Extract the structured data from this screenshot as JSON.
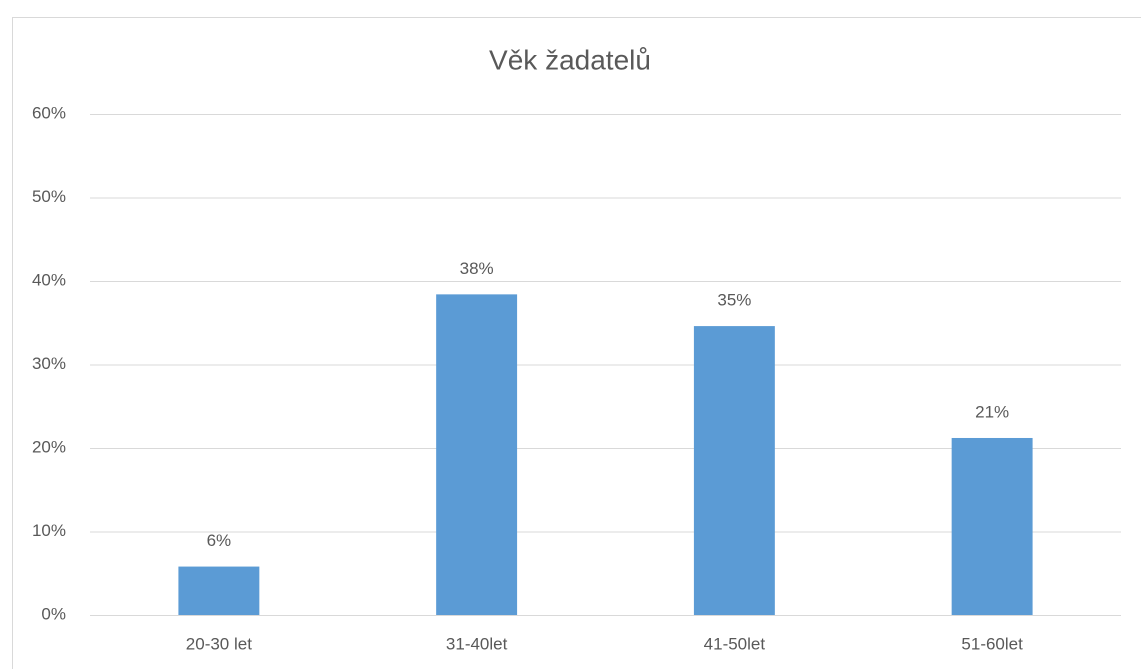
{
  "chart_data": {
    "type": "bar",
    "title": "Věk žadatelů",
    "categories": [
      "20-30 let",
      "31-40let",
      "41-50let",
      "51-60let"
    ],
    "values": [
      5.8,
      38.4,
      34.6,
      21.2
    ],
    "value_labels": [
      "6%",
      "38%",
      "35%",
      "21%"
    ],
    "color": "#5b9bd5",
    "ylim": [
      0,
      60
    ],
    "yticks": [
      {
        "value": 0,
        "label": "0%"
      },
      {
        "value": 10,
        "label": "10%"
      },
      {
        "value": 20,
        "label": "20%"
      },
      {
        "value": 30,
        "label": "30%"
      },
      {
        "value": 40,
        "label": "40%"
      },
      {
        "value": 50,
        "label": "50%"
      },
      {
        "value": 60,
        "label": "60%"
      }
    ],
    "grid": true
  }
}
